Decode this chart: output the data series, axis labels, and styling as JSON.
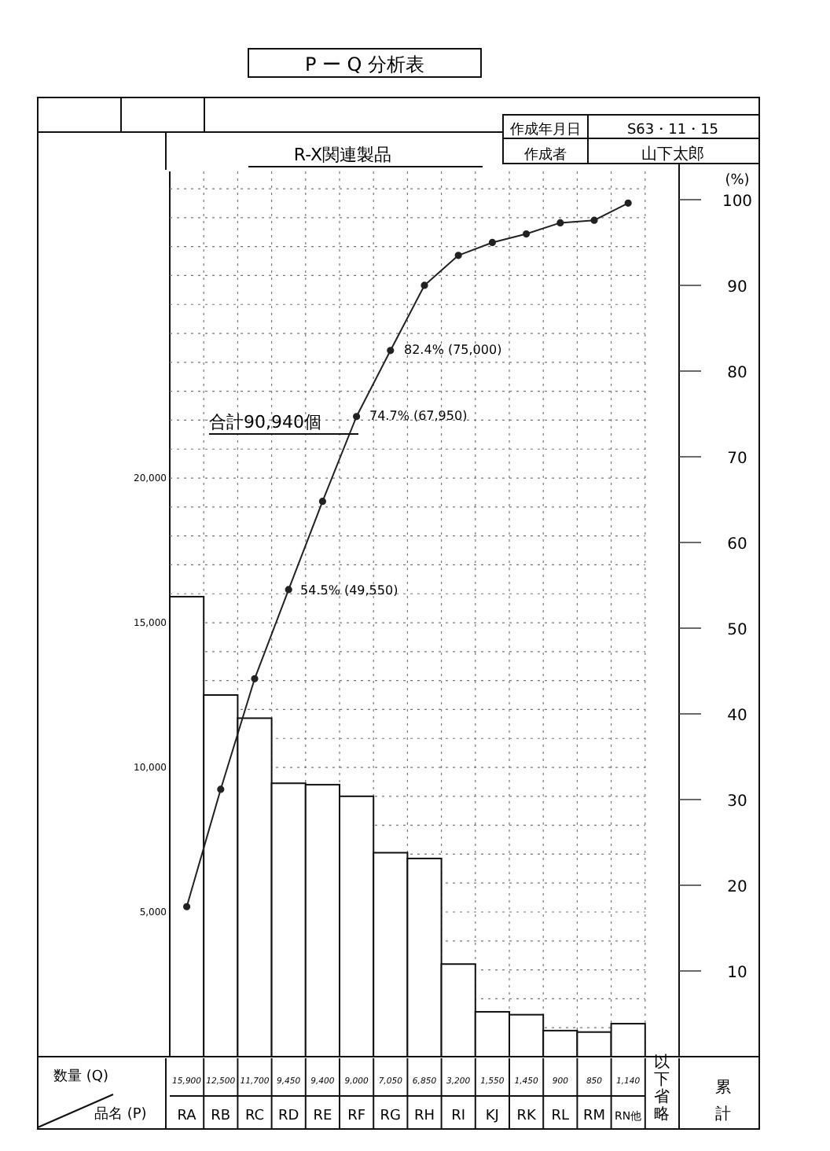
{
  "chart_data": {
    "type": "bar",
    "title": "P ー Q 分析表",
    "subtitle": "R-X関連製品",
    "categories": [
      "RA",
      "RB",
      "RC",
      "RD",
      "RE",
      "RF",
      "RG",
      "RH",
      "RI",
      "KJ",
      "RK",
      "RL",
      "RM",
      "RN他"
    ],
    "series": [
      {
        "color": "#ffffff",
        "values": [
          15900,
          12500,
          11700,
          9450,
          9400,
          9000,
          7050,
          6850,
          3200,
          1550,
          1450,
          900,
          850,
          1140
        ],
        "value_labels": [
          "15,900",
          "12,500",
          "11,700",
          "9,450",
          "9,400",
          "9,000",
          "7,050",
          "6,850",
          "3,200",
          "1,550",
          "1,450",
          "900",
          "850",
          "1,140"
        ]
      },
      {
        "type": "line",
        "axis": "y2",
        "color": "#222222",
        "marker": "circle",
        "values": [
          17.5,
          31.2,
          44.1,
          54.5,
          64.8,
          74.7,
          82.4,
          90.0,
          93.5,
          95.0,
          96.0,
          97.3,
          97.6,
          99.6
        ]
      }
    ],
    "ylim": [
      0,
      30600
    ],
    "yticks": [
      {
        "value": 1000,
        "label": null
      },
      {
        "value": 2000,
        "label": null
      },
      {
        "value": 3000,
        "label": null
      },
      {
        "value": 4000,
        "label": null
      },
      {
        "value": 5000,
        "label": "5,000"
      },
      {
        "value": 6000,
        "label": null
      },
      {
        "value": 7000,
        "label": null
      },
      {
        "value": 8000,
        "label": null
      },
      {
        "value": 9000,
        "label": null
      },
      {
        "value": 10000,
        "label": "10,000"
      },
      {
        "value": 11000,
        "label": null
      },
      {
        "value": 12000,
        "label": null
      },
      {
        "value": 13000,
        "label": null
      },
      {
        "value": 14000,
        "label": null
      },
      {
        "value": 15000,
        "label": "15,000"
      },
      {
        "value": 16000,
        "label": null
      },
      {
        "value": 17000,
        "label": null
      },
      {
        "value": 18000,
        "label": null
      },
      {
        "value": 19000,
        "label": null
      },
      {
        "value": 20000,
        "label": "20,000"
      },
      {
        "value": 21000,
        "label": null
      },
      {
        "value": 22000,
        "label": null
      },
      {
        "value": 23000,
        "label": null
      },
      {
        "value": 24000,
        "label": null
      },
      {
        "value": 25000,
        "label": null
      },
      {
        "value": 26000,
        "label": null
      },
      {
        "value": 27000,
        "label": null
      },
      {
        "value": 28000,
        "label": null
      },
      {
        "value": 29000,
        "label": null
      },
      {
        "value": 30000,
        "label": null
      }
    ],
    "y2lim": [
      0,
      103.3
    ],
    "y2ticks": [
      10,
      20,
      30,
      40,
      50,
      60,
      70,
      80,
      90,
      100
    ],
    "y2label": "(%)",
    "grid": true,
    "annotations": [
      "作成年月日",
      "S63・11・15",
      "作成者",
      "山下太郎",
      "合計90,940個",
      "以下省略",
      "累計",
      "数量 (Q)",
      "品名 (P)",
      "54.5% (49,550)",
      "74.7% (67,950)",
      "82.4% (75,000)"
    ]
  }
}
